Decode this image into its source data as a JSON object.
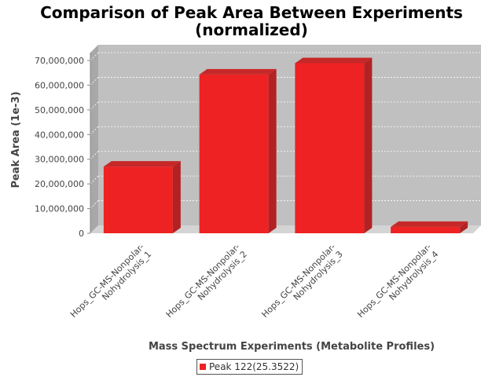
{
  "chart_data": {
    "type": "bar",
    "title": "Comparison of Peak Area Between Experiments",
    "subtitle": "(normalized)",
    "xlabel": "Mass Spectrum Experiments (Metabolite Profiles)",
    "ylabel": "Peak Area (1e-3)",
    "categories": [
      [
        "Hops_GC-MS-Nonpolar-",
        "Nohydrolysis_1"
      ],
      [
        "Hops_GC-MS-Nonpolar-",
        "Nohydrolysis_2"
      ],
      [
        "Hops_GC-MS-Nonpolar-",
        "Nohydrolysis_3"
      ],
      [
        "Hops_GC-MS-Nonpolar-",
        "Nohydrolysis_4"
      ]
    ],
    "series": [
      {
        "name": "Peak 122(25.3522)",
        "values": [
          27000000,
          64300000,
          68900000,
          2600000
        ],
        "color": "#ee2222"
      }
    ],
    "yticks": [
      0,
      10000000,
      20000000,
      30000000,
      40000000,
      50000000,
      60000000,
      70000000
    ],
    "ytick_labels": [
      "0",
      "10,000,000",
      "20,000,000",
      "30,000,000",
      "40,000,000",
      "50,000,000",
      "60,000,000",
      "70,000,000"
    ],
    "ylim": [
      0,
      70000000
    ],
    "grid": true,
    "legend_position": "bottom",
    "plot_background": "#c0c0c0",
    "bar_color": "#ee2222"
  }
}
